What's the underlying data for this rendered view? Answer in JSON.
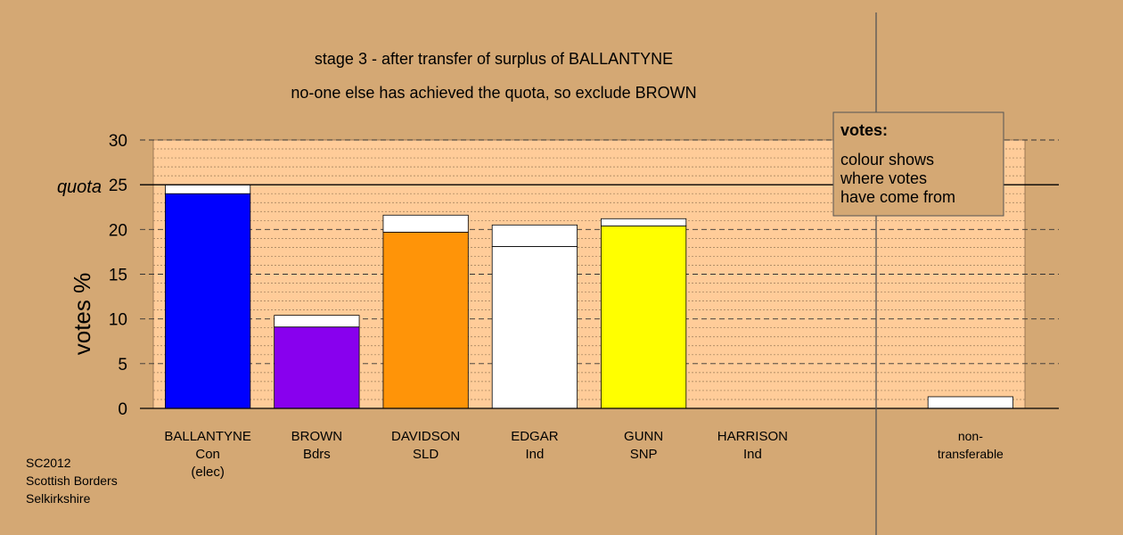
{
  "chart_data": {
    "type": "bar",
    "title": "stage 3 - after transfer of surplus of BALLANTYNE",
    "subtitle": "no-one else has achieved the quota, so exclude BROWN",
    "ylabel": "votes %",
    "ylim": [
      0,
      30
    ],
    "yticks": [
      "0",
      "5",
      "10",
      "15",
      "20",
      "25",
      "30"
    ],
    "quota": {
      "label": "quota",
      "value": 25
    },
    "categories": [
      {
        "name": "BALLANTYNE",
        "party": "Con",
        "note": "(elec)"
      },
      {
        "name": "BROWN",
        "party": "Bdrs",
        "note": ""
      },
      {
        "name": "DAVIDSON",
        "party": "SLD",
        "note": ""
      },
      {
        "name": "EDGAR",
        "party": "Ind",
        "note": ""
      },
      {
        "name": "GUNN",
        "party": "SNP",
        "note": ""
      },
      {
        "name": "HARRISON",
        "party": "Ind",
        "note": ""
      },
      {
        "name": "",
        "party": "",
        "note": ""
      },
      {
        "name": "non-",
        "party": "transferable",
        "note": ""
      }
    ],
    "series": [
      {
        "values": [
          24.0,
          9.1,
          19.7,
          18.1,
          20.4,
          0.0,
          0.0,
          0.0
        ],
        "colors": [
          "#0000ff",
          "#8800ee",
          "#ff9408",
          "#ffffff",
          "#ffff00",
          "#ffffff",
          "#ffffff",
          "#ffffff"
        ]
      },
      {
        "values": [
          1.0,
          1.3,
          1.9,
          2.4,
          0.8,
          0.0,
          0.0,
          1.3
        ],
        "colors": [
          "#ffffff",
          "#ffffff",
          "#ffffff",
          "#ffffff",
          "#ffffff",
          "#ffffff",
          "#ffffff",
          "#ffffff"
        ]
      }
    ],
    "legend": {
      "title": "votes:",
      "lines": [
        "colour shows",
        "where votes",
        "have come from"
      ]
    },
    "colors": {
      "background": "#d4a874",
      "plot_area": "#ffcc99"
    }
  },
  "footer": {
    "lines": [
      "SC2012",
      "Scottish Borders",
      "Selkirkshire"
    ]
  }
}
